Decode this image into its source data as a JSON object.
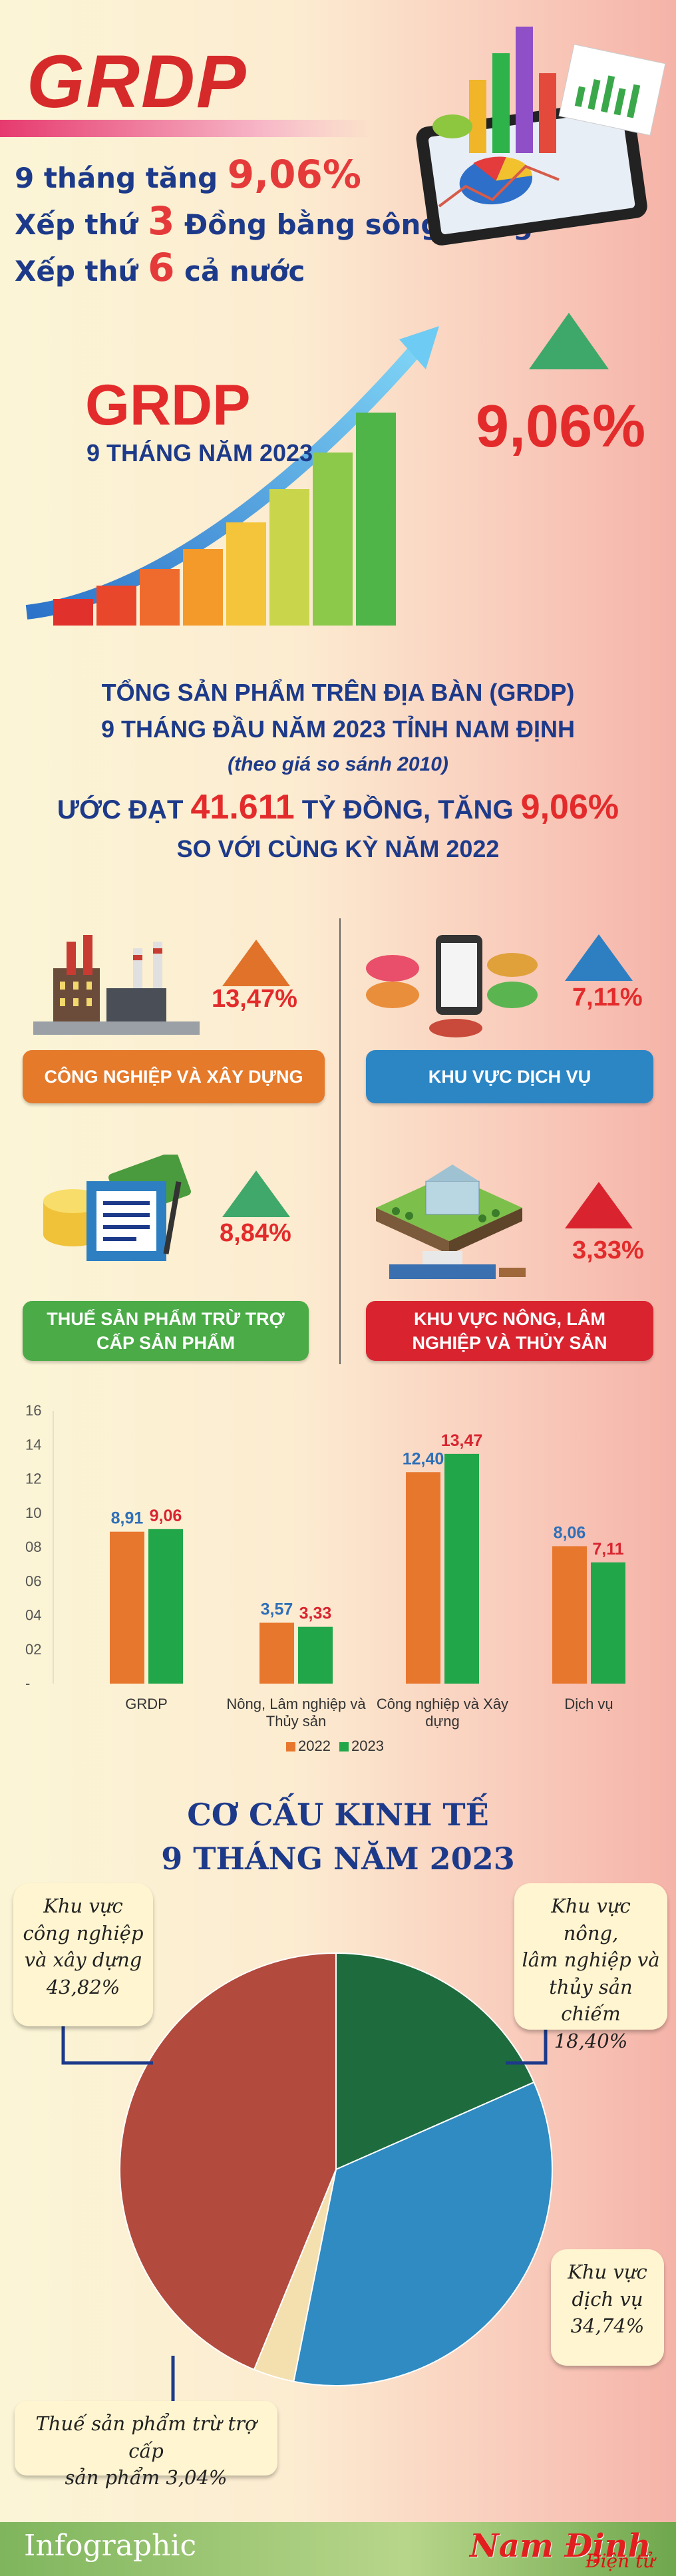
{
  "header": {
    "title": "GRDP",
    "line1_pre": "9 tháng tăng ",
    "line1_big": "9,06%",
    "line2_pre": "Xếp thứ ",
    "line2_big": "3",
    "line2_post": " Đồng bằng sông Hồng",
    "line3_pre": "Xếp thứ ",
    "line3_big": "6",
    "line3_post": " cả nước"
  },
  "growth_panel": {
    "title": "GRDP",
    "subtitle": "9 THÁNG NĂM 2023",
    "percent": "9,06%"
  },
  "summary": {
    "line1": "TỔNG SẢN PHẨM TRÊN ĐỊA BÀN (GRDP)",
    "line2": "9 THÁNG ĐẦU NĂM 2023 TỈNH NAM ĐỊNH",
    "line3": "(theo giá so sánh 2010)",
    "line4_a": "ƯỚC ĐẠT ",
    "line4_b": "41.611",
    "line4_c": " TỶ ĐỒNG, TĂNG ",
    "line4_d": "9,06%",
    "line5": "SO VỚI CÙNG KỲ NĂM 2022"
  },
  "sectors": [
    {
      "label": "CÔNG NGHIỆP VÀ XÂY DỰNG",
      "percent": "13,47%",
      "color": "#e57a2b",
      "arrow": "#e0722a"
    },
    {
      "label": "KHU VỰC DỊCH VỤ",
      "percent": "7,11%",
      "color": "#2d86c4",
      "arrow": "#2d7fc1"
    },
    {
      "label": "THUẾ SẢN PHẨM TRỪ TRỢ CẤP SẢN PHẨM",
      "percent": "8,84%",
      "color": "#4aab47",
      "arrow": "#3fa86a"
    },
    {
      "label": "KHU VỰC NÔNG, LÂM NGHIỆP VÀ THỦY SẢN",
      "percent": "3,33%",
      "color": "#d9242f",
      "arrow": "#d9242f"
    }
  ],
  "chart_data": [
    {
      "type": "bar",
      "categories": [
        "GRDP",
        "Nông, Lâm nghiệp và Thủy sản",
        "Công nghiệp và Xây dựng",
        "Dịch vụ"
      ],
      "series": [
        {
          "name": "2022",
          "values": [
            8.91,
            3.57,
            12.4,
            8.06
          ],
          "labels": [
            "8,91",
            "3,57",
            "12,40",
            "8,06"
          ],
          "color": "#e8772e",
          "label_color": "#2f6fb8"
        },
        {
          "name": "2023",
          "values": [
            9.06,
            3.33,
            13.47,
            7.11
          ],
          "labels": [
            "9,06",
            "3,33",
            "13,47",
            "7,11"
          ],
          "color": "#21a64a",
          "label_color": "#d9242f"
        }
      ],
      "yticks": [
        "16",
        "14",
        "12",
        "10",
        "08",
        "06",
        "04",
        "02",
        "-"
      ],
      "ylim": [
        0,
        16
      ],
      "legend": "bottom-center",
      "grid": false
    },
    {
      "type": "pie",
      "title": "CƠ CẤU KINH TẾ",
      "subtitle": "9 THÁNG NĂM 2023",
      "slices": [
        {
          "label": "Khu vực nông, lâm nghiệp và thủy sản chiếm 18,40%",
          "value": 18.4,
          "color": "#1e6b3e"
        },
        {
          "label": "Khu vực dịch vụ 34,74%",
          "value": 34.74,
          "color": "#2f8bc2"
        },
        {
          "label": "Thuế sản phẩm trừ trợ cấp sản phẩm 3,04%",
          "value": 3.04,
          "color": "#f4dfae"
        },
        {
          "label": "Khu vực công nghiệp và xây dựng 43,82%",
          "value": 43.82,
          "color": "#b24a3d"
        }
      ]
    }
  ],
  "pie_callouts": {
    "industry": [
      "Khu vực",
      "công nghiệp",
      "và xây dựng",
      "43,82%"
    ],
    "agri": [
      "Khu vực nông,",
      "lâm nghiệp và",
      "thủy sản chiếm",
      "18,40%"
    ],
    "service": [
      "Khu vực",
      "dịch vụ",
      "34,74%"
    ],
    "tax": [
      "Thuế sản phẩm trừ trợ cấp",
      "sản phẩm 3,04%"
    ]
  },
  "footer": {
    "label": "Infographic",
    "brand": "Nam Định",
    "brand_sub": "Điện tử"
  }
}
